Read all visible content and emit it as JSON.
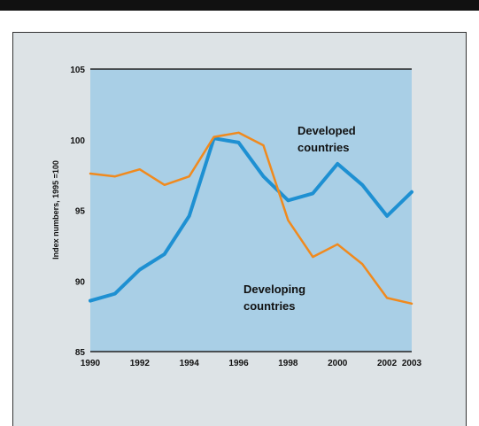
{
  "chart_data": {
    "type": "line",
    "ylabel": "Index numbers, 1995 =100",
    "xlim": [
      1990,
      2003
    ],
    "ylim": [
      85,
      105
    ],
    "x_ticks": [
      "1990",
      "1992",
      "1994",
      "1996",
      "1998",
      "2000",
      "2002",
      "2003"
    ],
    "y_ticks": [
      "85",
      "90",
      "95",
      "100",
      "105"
    ],
    "grid": false,
    "x": [
      1990,
      1991,
      1992,
      1993,
      1994,
      1995,
      1996,
      1997,
      1998,
      1999,
      2000,
      2001,
      2002,
      2003
    ],
    "series": [
      {
        "name": "Developed countries",
        "color": "#1e90d2",
        "values": [
          88.6,
          89.1,
          90.8,
          91.9,
          94.6,
          100.1,
          99.8,
          97.4,
          95.7,
          96.2,
          98.3,
          96.8,
          94.6,
          96.3
        ]
      },
      {
        "name": "Developing countries",
        "color": "#f08a1e",
        "values": [
          97.6,
          97.4,
          97.9,
          96.8,
          97.4,
          100.2,
          100.5,
          99.6,
          94.3,
          91.7,
          92.6,
          91.2,
          88.8,
          88.4
        ]
      }
    ],
    "annotations": [
      {
        "text": "Developed",
        "series": "Developed countries"
      },
      {
        "text": "countries",
        "series": "Developed countries"
      },
      {
        "text": "Developing",
        "series": "Developing countries"
      },
      {
        "text": "countries",
        "series": "Developing countries"
      }
    ]
  },
  "colors": {
    "plot_background": "#a9cfe6",
    "panel_background": "#dde3e6",
    "top_border": "#111111"
  }
}
